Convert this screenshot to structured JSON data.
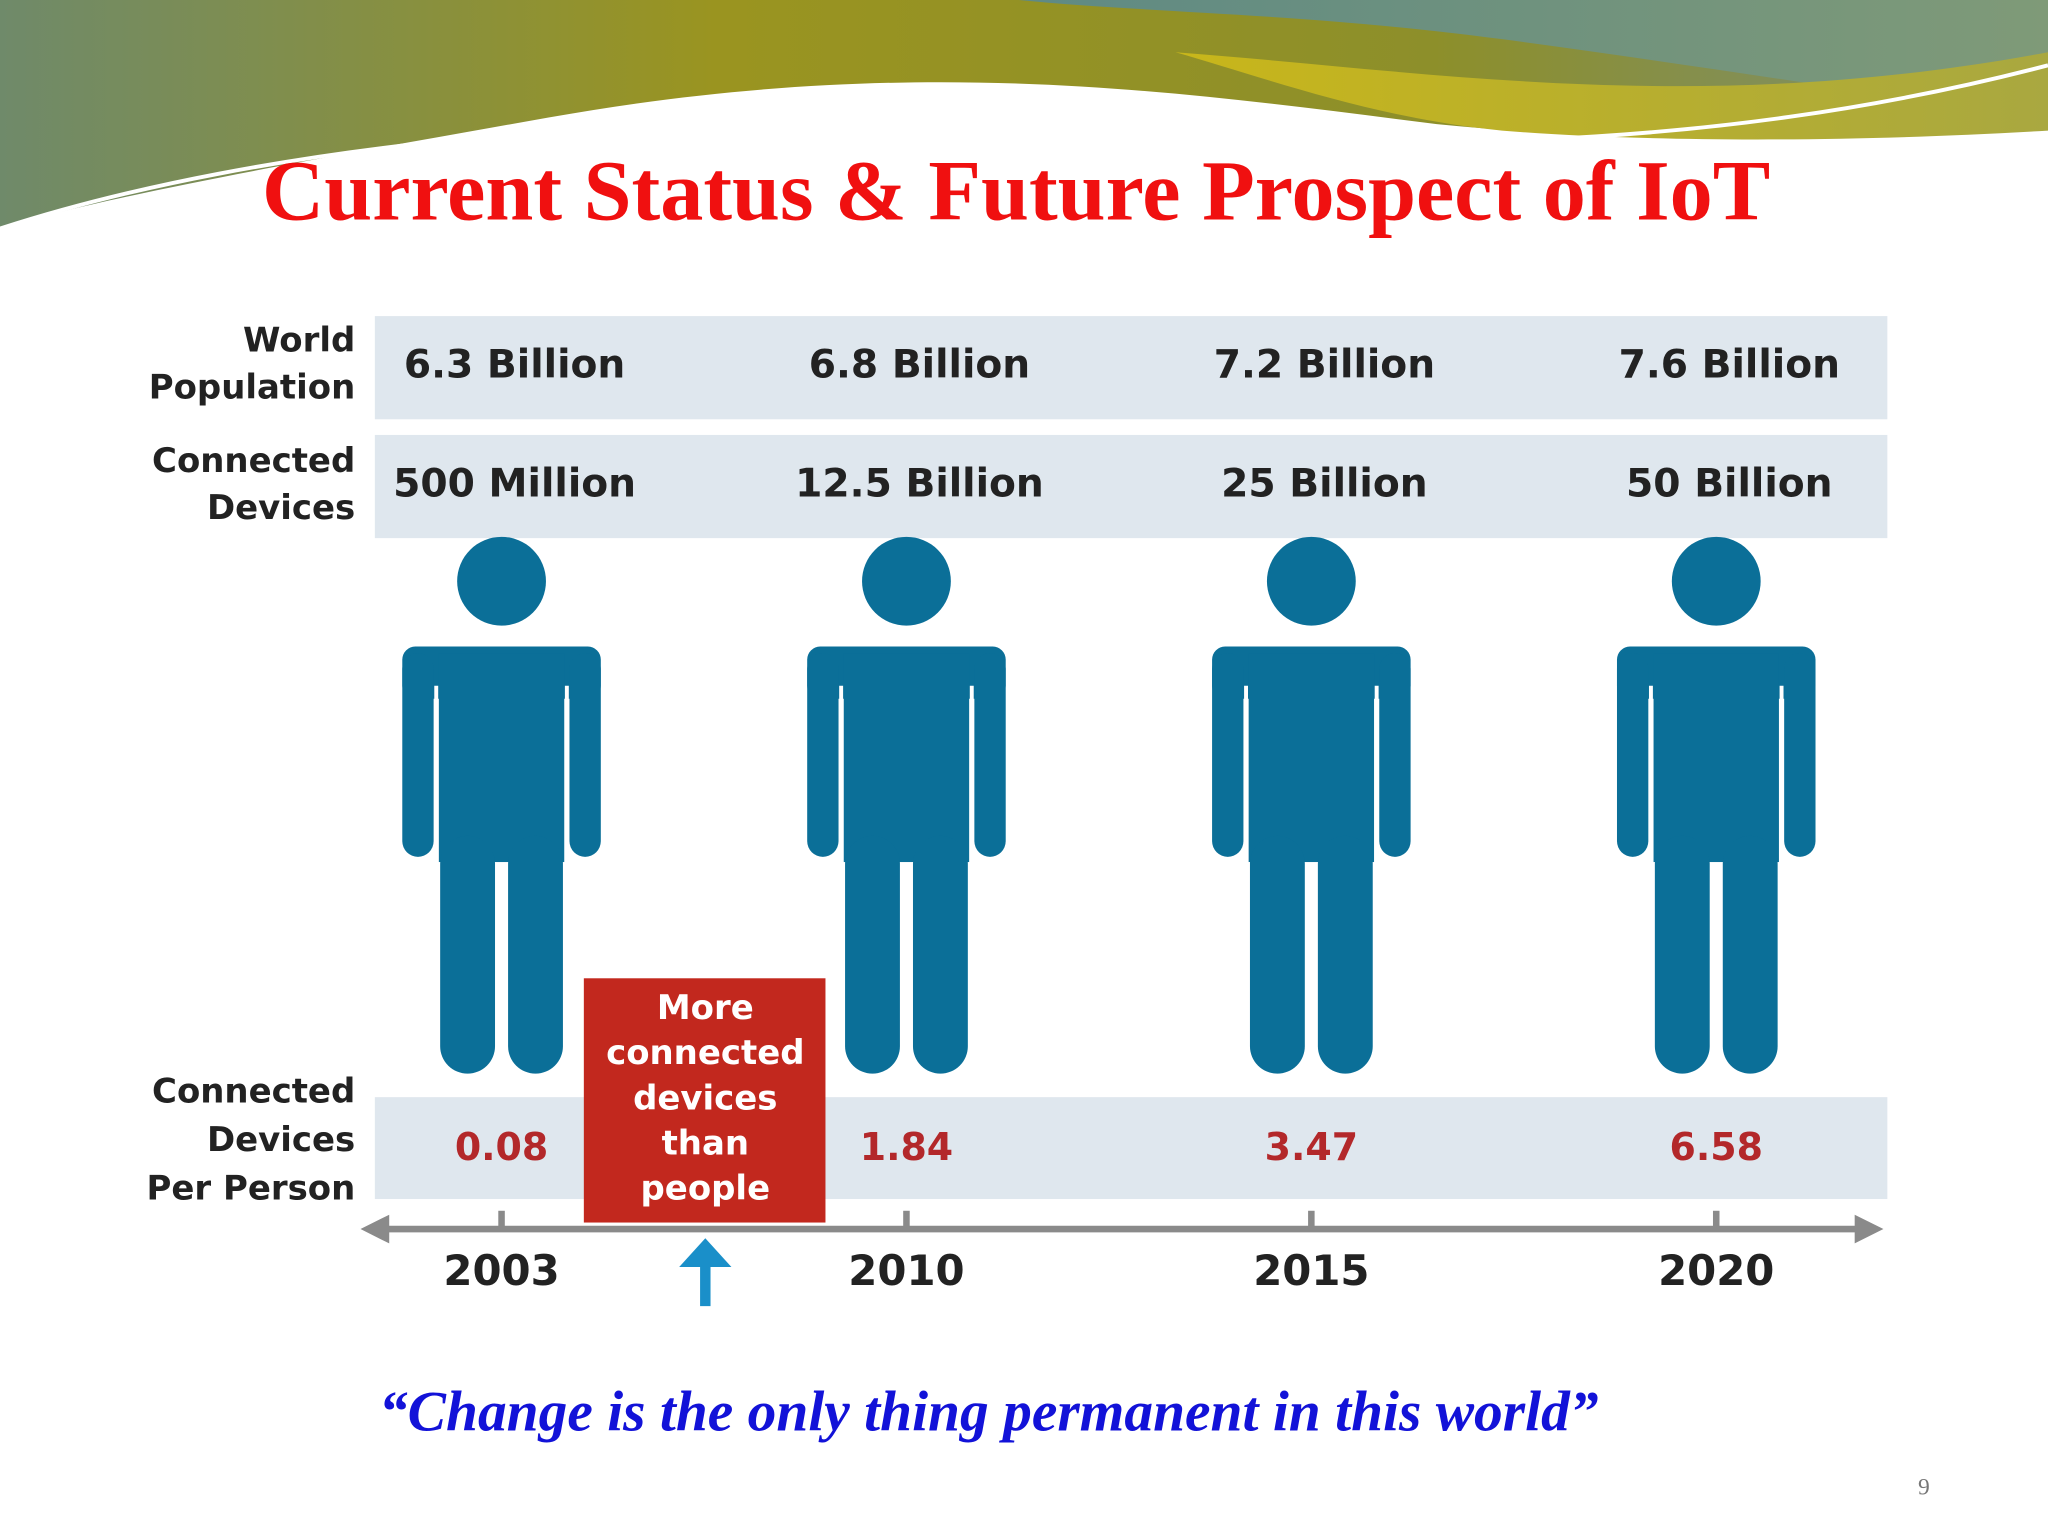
{
  "title": "Current Status & Future Prospect of IoT",
  "infographic": {
    "row_labels": {
      "population": [
        "World",
        "Population"
      ],
      "devices": [
        "Connected",
        "Devices"
      ],
      "per_person": [
        "Connected",
        "Devices",
        "Per Person"
      ]
    },
    "columns": [
      {
        "year": "2003",
        "population": "6.3 Billion",
        "devices": "500 Million",
        "per_person": "0.08"
      },
      {
        "year": "2010",
        "population": "6.8 Billion",
        "devices": "12.5 Billion",
        "per_person": "1.84"
      },
      {
        "year": "2015",
        "population": "7.2 Billion",
        "devices": "25 Billion",
        "per_person": "3.47"
      },
      {
        "year": "2020",
        "population": "7.6 Billion",
        "devices": "50 Billion",
        "per_person": "6.58"
      }
    ],
    "callout": [
      "More",
      "connected",
      "devices",
      "than",
      "people"
    ]
  },
  "quote": "“Change is the only thing permanent in this world”",
  "page_number": "9"
}
